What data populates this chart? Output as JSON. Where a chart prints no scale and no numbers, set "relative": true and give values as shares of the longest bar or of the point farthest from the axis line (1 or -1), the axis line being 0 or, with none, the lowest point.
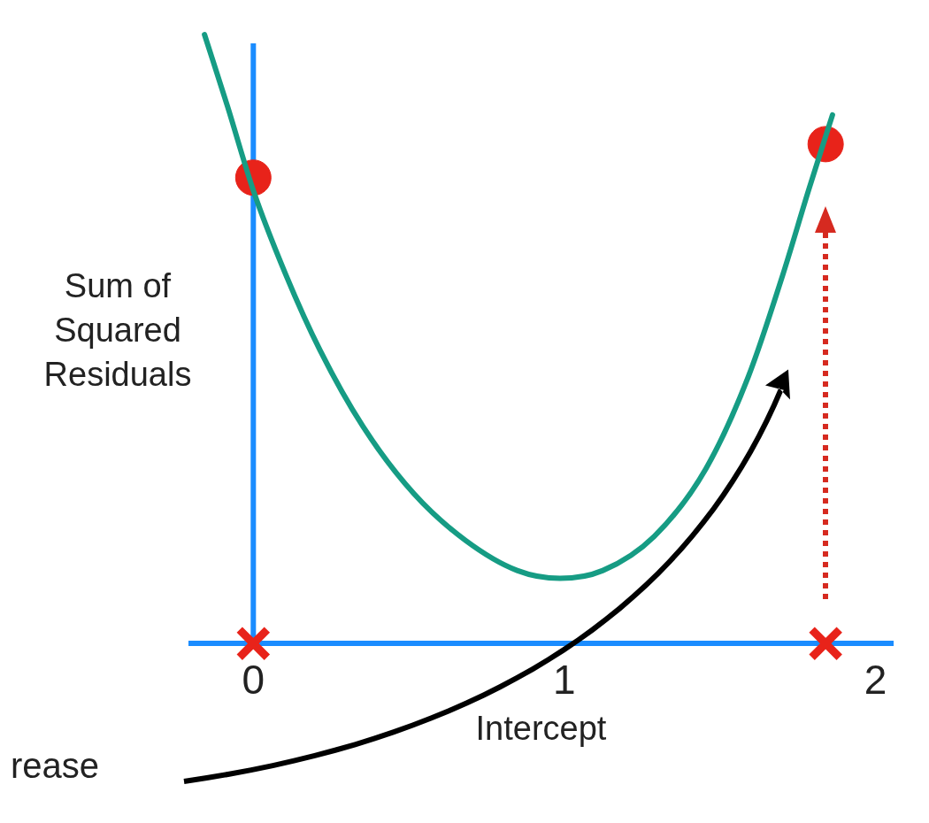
{
  "chart_data": {
    "type": "line",
    "xlabel": "Intercept",
    "ylabel": "Sum of Squared Residuals",
    "relative": true,
    "xlim": [
      -0.2,
      2.05
    ],
    "xticks": [
      0,
      1,
      2
    ],
    "grid": false,
    "legend": false,
    "annotations": [
      "rease"
    ],
    "ref_lines": [
      {
        "axis": "x",
        "value": 0,
        "color": "#1a8cff",
        "line_style": "solid"
      }
    ],
    "series": [
      {
        "type": "line",
        "color": "#169c84",
        "marker": "none",
        "line_style": "solid",
        "x": [
          -0.157,
          -0.083,
          0,
          0.105,
          0.215,
          0.353,
          0.518,
          0.683,
          0.848,
          0.986,
          1.124,
          1.289,
          1.455,
          1.592,
          1.702,
          1.785,
          1.862
        ],
        "values": [
          1.0,
          0.882,
          0.744,
          0.605,
          0.481,
          0.356,
          0.245,
          0.169,
          0.12,
          0.107,
          0.12,
          0.176,
          0.287,
          0.439,
          0.605,
          0.744,
          0.868
        ]
      },
      {
        "type": "scatter",
        "color": "#e8231a",
        "marker": "circle",
        "x": [
          0,
          1.84
        ],
        "values": [
          0.765,
          0.82
        ]
      },
      {
        "type": "scatter",
        "color": "#e8231a",
        "marker": "cross",
        "x": [
          0,
          1.84
        ],
        "values": [
          0,
          0
        ]
      }
    ]
  }
}
